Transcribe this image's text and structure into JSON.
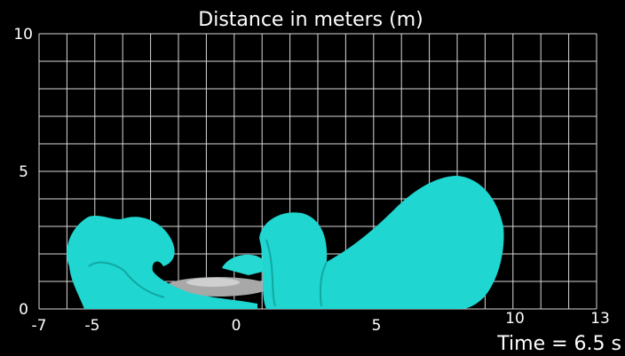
{
  "title": "Distance in meters (m)",
  "y_axis": {
    "labels": [
      "10",
      "5",
      "0"
    ]
  },
  "x_axis": {
    "labels": [
      "-7",
      "-5",
      "0",
      "5",
      "10",
      "13"
    ]
  },
  "footer": "Time = 6.5 s"
}
